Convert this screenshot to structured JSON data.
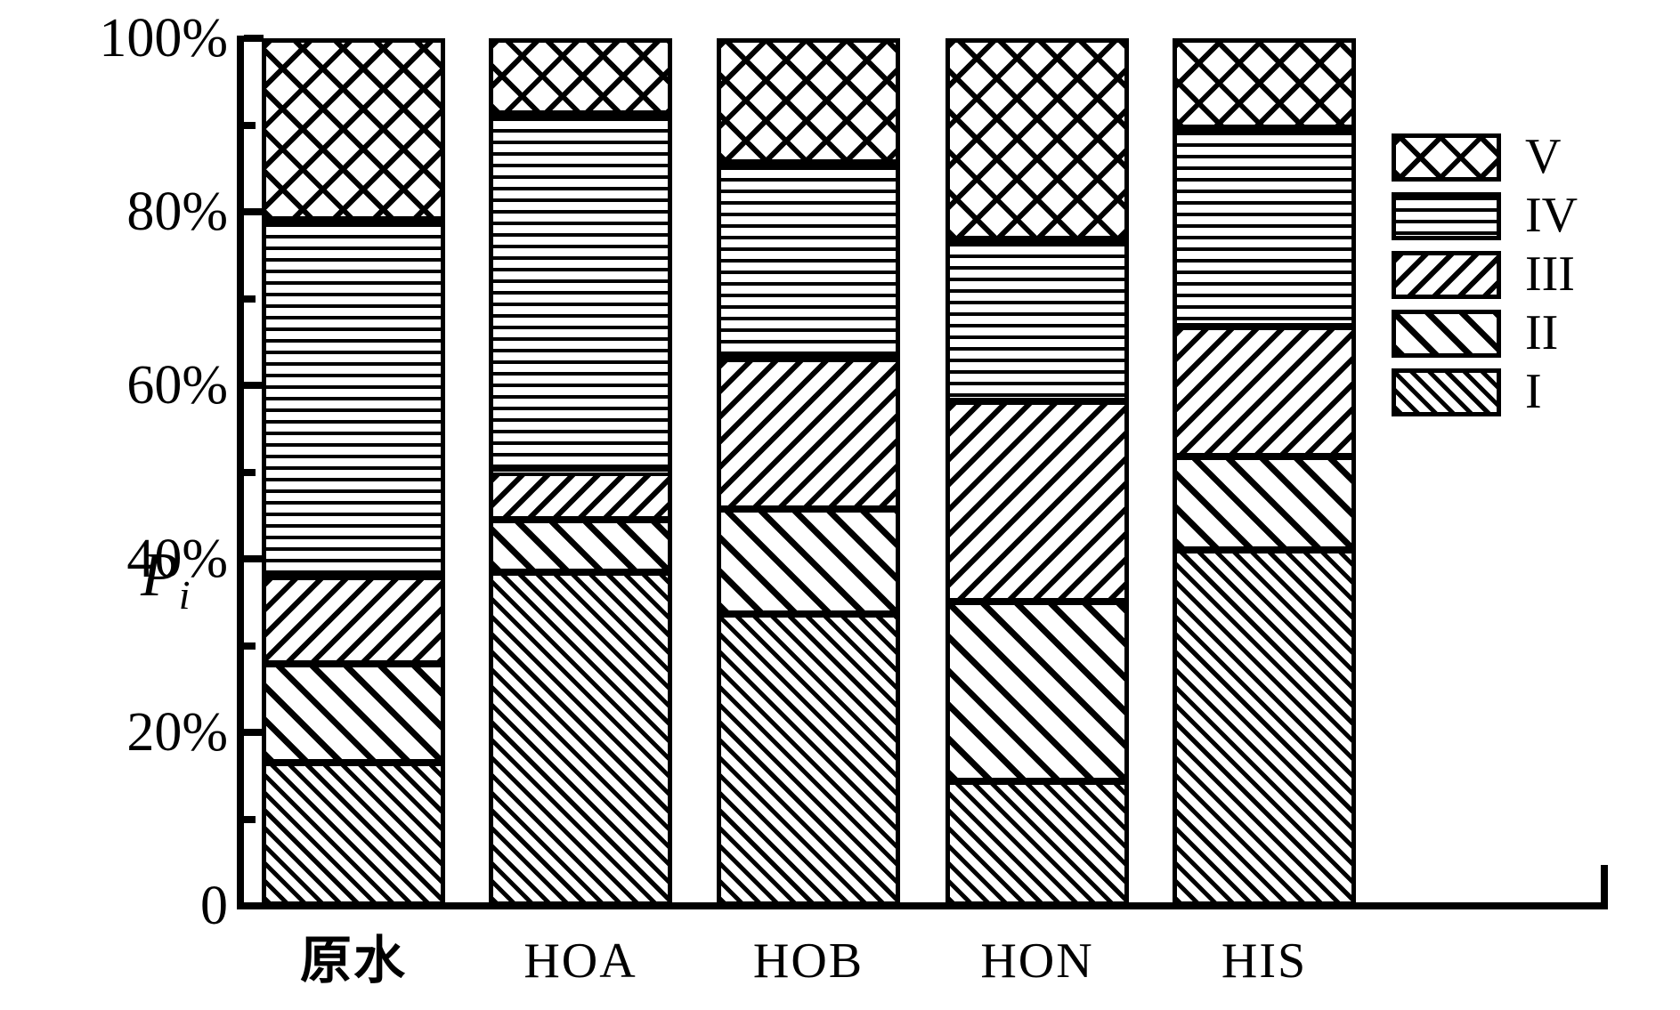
{
  "figure": {
    "background": "#ffffff",
    "foreground": "#000000",
    "ylabel": {
      "base": "P",
      "sub": "i"
    }
  },
  "chart_data": {
    "type": "bar",
    "stacked": true,
    "title": "",
    "xlabel": "",
    "ylabel": "Pi",
    "ylim": [
      0,
      100
    ],
    "yunit": "percent",
    "grid": false,
    "legend_position": "upper-right",
    "categories": [
      "原水",
      "HOA",
      "HOB",
      "HON",
      "HIS"
    ],
    "series": [
      {
        "name": "I",
        "pattern": "diag-thin",
        "values": [
          16.5,
          38.5,
          33.6,
          14.4,
          41.0
        ]
      },
      {
        "name": "II",
        "pattern": "diag-thick",
        "values": [
          11.4,
          6.0,
          12.1,
          20.7,
          10.8
        ]
      },
      {
        "name": "III",
        "pattern": "back-diag",
        "values": [
          10.0,
          5.5,
          17.4,
          23.1,
          15.0
        ]
      },
      {
        "name": "IV",
        "pattern": "hlines",
        "values": [
          41.2,
          41.3,
          22.5,
          18.6,
          22.8
        ]
      },
      {
        "name": "V",
        "pattern": "crosshatch",
        "values": [
          20.9,
          8.7,
          14.4,
          23.2,
          10.4
        ]
      }
    ],
    "yticks": [
      {
        "pct": 0,
        "label": "0"
      },
      {
        "pct": 20,
        "label": "20%"
      },
      {
        "pct": 40,
        "label": "40%"
      },
      {
        "pct": 60,
        "label": "60%"
      },
      {
        "pct": 80,
        "label": "80%"
      },
      {
        "pct": 100,
        "label": "100%"
      }
    ],
    "minor_tick_pcts": [
      10,
      30,
      50,
      70,
      90
    ]
  },
  "legend": {
    "items": [
      {
        "label": "V",
        "pattern": "crosshatch"
      },
      {
        "label": "IV",
        "pattern": "hlines"
      },
      {
        "label": "III",
        "pattern": "back-diag"
      },
      {
        "label": "II",
        "pattern": "diag-thick"
      },
      {
        "label": "I",
        "pattern": "diag-thin"
      }
    ]
  }
}
